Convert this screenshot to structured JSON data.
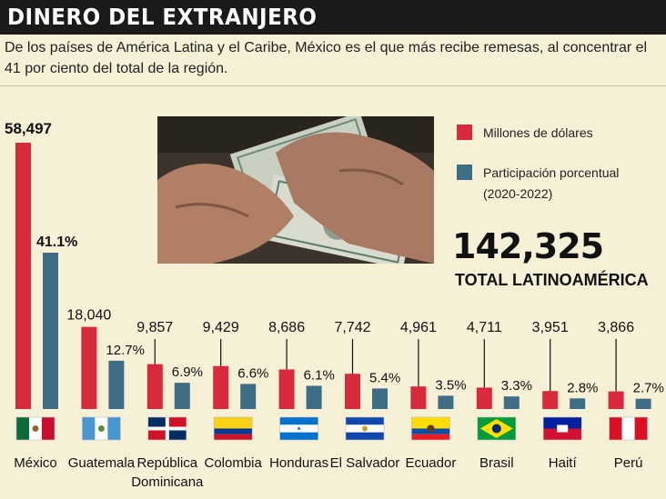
{
  "title": "DINERO DEL EXTRANJERO",
  "subtitle": "De los países de América Latina y el Caribe, México es el que más recibe remesas, al concentrar el 41 por ciento del total de la región.",
  "total": {
    "value": "142,325",
    "label": "TOTAL LATINOAMÉRICA"
  },
  "colors": {
    "red": "#d92a3c",
    "blue": "#3e6e86",
    "header_bg": "#1a1a1a",
    "background": "#f5f0d6"
  },
  "chart_data": {
    "type": "bar",
    "categories": [
      "México",
      "Guatemala",
      "República Dominicana",
      "Colombia",
      "Honduras",
      "El Salvador",
      "Ecuador",
      "Brasil",
      "Haití",
      "Perú"
    ],
    "category_labels": [
      [
        "México"
      ],
      [
        "Guatemala"
      ],
      [
        "República",
        "Dominicana"
      ],
      [
        "Colombia"
      ],
      [
        "Honduras"
      ],
      [
        "El Salvador"
      ],
      [
        "Ecuador"
      ],
      [
        "Brasil"
      ],
      [
        "Haití"
      ],
      [
        "Perú"
      ]
    ],
    "series": [
      {
        "name": "Millones de dólares",
        "values": [
          58497,
          18040,
          9857,
          9429,
          8686,
          7742,
          4961,
          4711,
          3951,
          3866
        ],
        "labels": [
          "58,497",
          "18,040",
          "9,857",
          "9,429",
          "8,686",
          "7,742",
          "4,961",
          "4,711",
          "3,951",
          "3,866"
        ]
      },
      {
        "name": "Participación porcentual (2020-2022)",
        "values": [
          41.1,
          12.7,
          6.9,
          6.6,
          6.1,
          5.4,
          3.5,
          3.3,
          2.8,
          2.7
        ],
        "labels": [
          "41.1%",
          "12.7%",
          "6.9%",
          "6.6%",
          "6.1%",
          "5.4%",
          "3.5%",
          "3.3%",
          "2.8%",
          "2.7%"
        ]
      }
    ],
    "legend": [
      {
        "text": [
          "Millones de dólares"
        ],
        "color": "#d92a3c"
      },
      {
        "text": [
          "Participación porcentual",
          "(2020-2022)"
        ],
        "color": "#3e6e86"
      }
    ],
    "legend_position": "top-right",
    "flags": [
      "mexico-flag-icon",
      "guatemala-flag-icon",
      "dominican-republic-flag-icon",
      "colombia-flag-icon",
      "honduras-flag-icon",
      "el-salvador-flag-icon",
      "ecuador-flag-icon",
      "brazil-flag-icon",
      "haiti-flag-icon",
      "peru-flag-icon"
    ]
  }
}
